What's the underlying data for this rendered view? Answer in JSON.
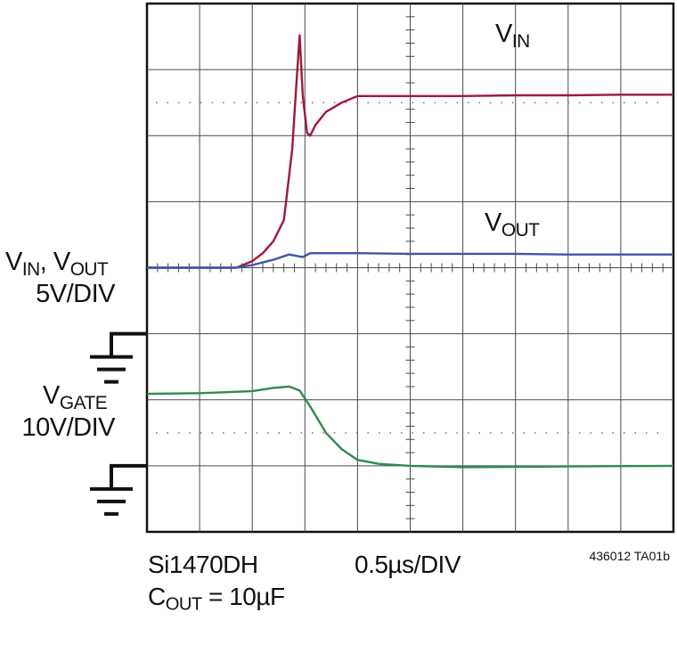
{
  "labels": {
    "vin_main": "V",
    "vin_sub": "IN",
    "vout_main": "V",
    "vout_sub": "OUT",
    "y1_v1": "V",
    "y1_sub1": "IN",
    "y1_sep": ", V",
    "y1_sub2": "OUT",
    "y1_scale": "5V/DIV",
    "y2_main": "V",
    "y2_sub": "GATE",
    "y2_scale": "10V/DIV",
    "part": "Si1470DH",
    "cout_main": "C",
    "cout_sub": "OUT",
    "cout_value": " = 10µF",
    "timebase": "0.5µs/DIV",
    "figure_id": "436012 TA01b"
  },
  "colors": {
    "vin": "#a0173a",
    "vout": "#3f55a6",
    "vgate": "#2f8a4e",
    "grid": "#4a4a4a",
    "frame": "#111111"
  },
  "chart_data": {
    "type": "line",
    "grid": true,
    "x_divisions": 10,
    "y_divisions": 8,
    "timebase_us_per_div": 0.5,
    "xlim_us": [
      0,
      5
    ],
    "series": [
      {
        "name": "VIN",
        "scale": "5V/DIV",
        "x": [
          0,
          0.5,
          0.85,
          1.0,
          1.1,
          1.2,
          1.3,
          1.38,
          1.42,
          1.45,
          1.48,
          1.52,
          1.55,
          1.6,
          1.7,
          1.85,
          2.0,
          2.5,
          3.0,
          3.5,
          4.0,
          4.5,
          5.0
        ],
        "y": [
          0,
          0,
          0,
          0.5,
          1.1,
          2.0,
          3.6,
          9.0,
          14.0,
          17.6,
          13.0,
          10.2,
          10.0,
          10.8,
          11.8,
          12.5,
          13.0,
          13.0,
          13.0,
          13.05,
          13.05,
          13.1,
          13.1
        ]
      },
      {
        "name": "VOUT",
        "scale": "5V/DIV",
        "x": [
          0,
          0.85,
          1.0,
          1.2,
          1.35,
          1.48,
          1.55,
          2.0,
          2.5,
          3.0,
          3.5,
          4.0,
          4.5,
          5.0
        ],
        "y": [
          0,
          0,
          0.2,
          0.6,
          1.0,
          0.8,
          1.1,
          1.1,
          1.05,
          1.05,
          1.05,
          1.0,
          1.0,
          1.0
        ]
      },
      {
        "name": "VGATE",
        "scale": "10V/DIV",
        "x": [
          0,
          0.5,
          1.0,
          1.2,
          1.35,
          1.45,
          1.55,
          1.7,
          1.85,
          2.0,
          2.2,
          2.5,
          3.0,
          3.5,
          4.0,
          4.5,
          5.0
        ],
        "y": [
          10.9,
          11.0,
          11.3,
          11.8,
          12.0,
          11.4,
          9.0,
          5.0,
          2.5,
          0.9,
          0.3,
          0.0,
          -0.2,
          -0.15,
          -0.1,
          -0.05,
          0.0
        ]
      }
    ]
  }
}
